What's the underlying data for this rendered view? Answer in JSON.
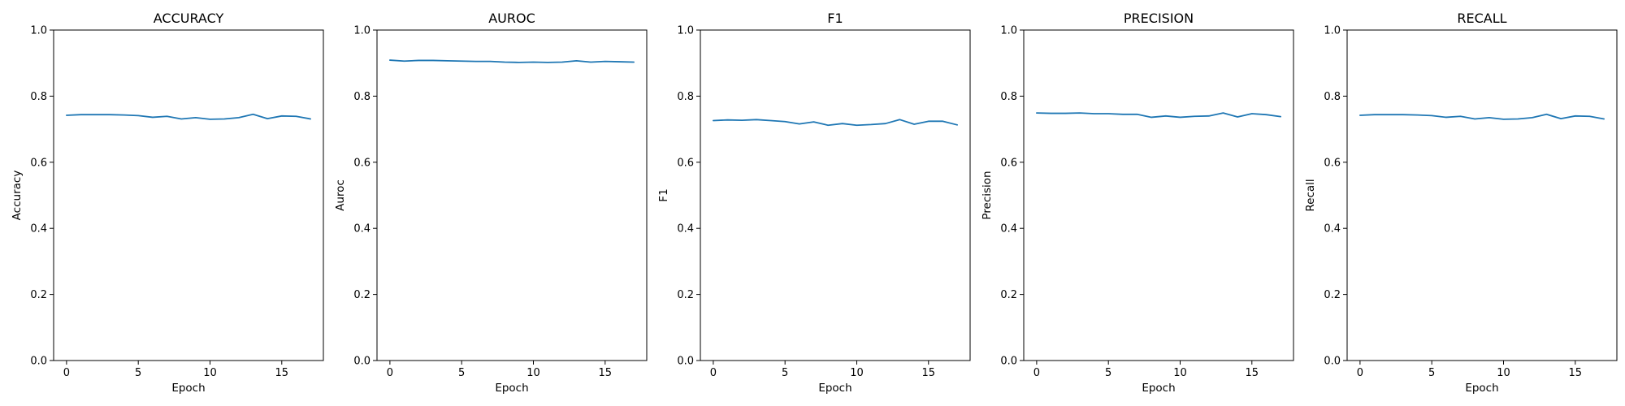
{
  "figure": {
    "background": "#ffffff",
    "line_color": "#1f77b4"
  },
  "chart_data": [
    {
      "type": "line",
      "title": "ACCURACY",
      "xlabel": "Epoch",
      "ylabel": "Accuracy",
      "xlim": [
        -0.9,
        17.9
      ],
      "ylim": [
        0.0,
        1.0
      ],
      "xticks": [
        0,
        5,
        10,
        15
      ],
      "yticks": [
        0.0,
        0.2,
        0.4,
        0.6,
        0.8,
        1.0
      ],
      "grid": false,
      "x": [
        0,
        1,
        2,
        3,
        4,
        5,
        6,
        7,
        8,
        9,
        10,
        11,
        12,
        13,
        14,
        15,
        16,
        17
      ],
      "values": [
        0.742,
        0.744,
        0.744,
        0.744,
        0.743,
        0.741,
        0.736,
        0.739,
        0.731,
        0.735,
        0.73,
        0.731,
        0.735,
        0.745,
        0.732,
        0.74,
        0.739,
        0.731
      ]
    },
    {
      "type": "line",
      "title": "AUROC",
      "xlabel": "Epoch",
      "ylabel": "Auroc",
      "xlim": [
        -0.9,
        17.9
      ],
      "ylim": [
        0.0,
        1.0
      ],
      "xticks": [
        0,
        5,
        10,
        15
      ],
      "yticks": [
        0.0,
        0.2,
        0.4,
        0.6,
        0.8,
        1.0
      ],
      "grid": false,
      "x": [
        0,
        1,
        2,
        3,
        4,
        5,
        6,
        7,
        8,
        9,
        10,
        11,
        12,
        13,
        14,
        15,
        16,
        17
      ],
      "values": [
        0.909,
        0.906,
        0.908,
        0.908,
        0.907,
        0.906,
        0.905,
        0.905,
        0.903,
        0.902,
        0.903,
        0.902,
        0.903,
        0.907,
        0.903,
        0.905,
        0.904,
        0.903
      ]
    },
    {
      "type": "line",
      "title": "F1",
      "xlabel": "Epoch",
      "ylabel": "F1",
      "xlim": [
        -0.9,
        17.9
      ],
      "ylim": [
        0.0,
        1.0
      ],
      "xticks": [
        0,
        5,
        10,
        15
      ],
      "yticks": [
        0.0,
        0.2,
        0.4,
        0.6,
        0.8,
        1.0
      ],
      "grid": false,
      "x": [
        0,
        1,
        2,
        3,
        4,
        5,
        6,
        7,
        8,
        9,
        10,
        11,
        12,
        13,
        14,
        15,
        16,
        17
      ],
      "values": [
        0.726,
        0.728,
        0.727,
        0.729,
        0.726,
        0.723,
        0.716,
        0.722,
        0.712,
        0.717,
        0.712,
        0.714,
        0.717,
        0.729,
        0.715,
        0.724,
        0.724,
        0.713
      ]
    },
    {
      "type": "line",
      "title": "PRECISION",
      "xlabel": "Epoch",
      "ylabel": "Precision",
      "xlim": [
        -0.9,
        17.9
      ],
      "ylim": [
        0.0,
        1.0
      ],
      "xticks": [
        0,
        5,
        10,
        15
      ],
      "yticks": [
        0.0,
        0.2,
        0.4,
        0.6,
        0.8,
        1.0
      ],
      "grid": false,
      "x": [
        0,
        1,
        2,
        3,
        4,
        5,
        6,
        7,
        8,
        9,
        10,
        11,
        12,
        13,
        14,
        15,
        16,
        17
      ],
      "values": [
        0.749,
        0.748,
        0.748,
        0.749,
        0.747,
        0.747,
        0.745,
        0.745,
        0.736,
        0.74,
        0.736,
        0.739,
        0.74,
        0.749,
        0.737,
        0.747,
        0.744,
        0.738
      ]
    },
    {
      "type": "line",
      "title": "RECALL",
      "xlabel": "Epoch",
      "ylabel": "Recall",
      "xlim": [
        -0.9,
        17.9
      ],
      "ylim": [
        0.0,
        1.0
      ],
      "xticks": [
        0,
        5,
        10,
        15
      ],
      "yticks": [
        0.0,
        0.2,
        0.4,
        0.6,
        0.8,
        1.0
      ],
      "grid": false,
      "x": [
        0,
        1,
        2,
        3,
        4,
        5,
        6,
        7,
        8,
        9,
        10,
        11,
        12,
        13,
        14,
        15,
        16,
        17
      ],
      "values": [
        0.742,
        0.744,
        0.744,
        0.744,
        0.743,
        0.741,
        0.736,
        0.739,
        0.731,
        0.735,
        0.73,
        0.731,
        0.735,
        0.745,
        0.732,
        0.74,
        0.739,
        0.731
      ]
    }
  ]
}
